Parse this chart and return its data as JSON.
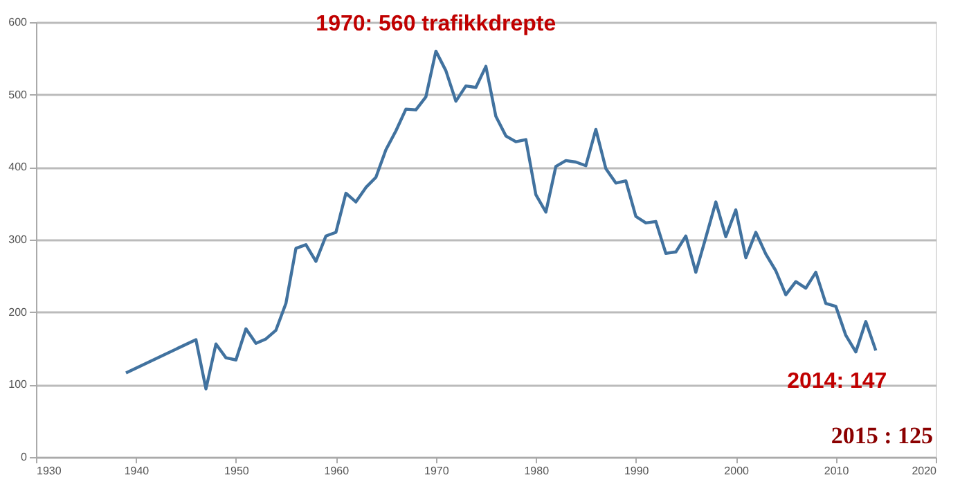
{
  "chart_data": {
    "type": "line",
    "x": [
      1939,
      1946,
      1947,
      1948,
      1949,
      1950,
      1951,
      1952,
      1953,
      1954,
      1955,
      1956,
      1957,
      1958,
      1959,
      1960,
      1961,
      1962,
      1963,
      1964,
      1965,
      1966,
      1967,
      1968,
      1969,
      1970,
      1971,
      1972,
      1973,
      1974,
      1975,
      1976,
      1977,
      1978,
      1979,
      1980,
      1981,
      1982,
      1983,
      1984,
      1985,
      1986,
      1987,
      1988,
      1989,
      1990,
      1991,
      1992,
      1993,
      1994,
      1995,
      1996,
      1997,
      1998,
      1999,
      2000,
      2001,
      2002,
      2003,
      2004,
      2005,
      2006,
      2007,
      2008,
      2009,
      2010,
      2011,
      2012,
      2013,
      2014
    ],
    "series": [
      {
        "color": "#41729f",
        "values": [
          116,
          162,
          94,
          156,
          137,
          134,
          177,
          157,
          163,
          175,
          212,
          288,
          293,
          270,
          305,
          310,
          364,
          352,
          372,
          386,
          424,
          450,
          480,
          479,
          497,
          560,
          533,
          491,
          512,
          510,
          539,
          470,
          443,
          435,
          438,
          362,
          338,
          401,
          409,
          407,
          402,
          452,
          398,
          378,
          381,
          332,
          323,
          325,
          281,
          283,
          305,
          255,
          303,
          352,
          304,
          341,
          275,
          310,
          280,
          257,
          224,
          242,
          233,
          255,
          212,
          208,
          168,
          145,
          187,
          147
        ]
      }
    ],
    "xlim": [
      1930,
      2020
    ],
    "xticks": [
      1930,
      1940,
      1950,
      1960,
      1970,
      1980,
      1990,
      2000,
      2010,
      2020
    ],
    "ylim": [
      0,
      600
    ],
    "yticks": [
      0,
      100,
      200,
      300,
      400,
      500,
      600
    ],
    "grid": "y",
    "marker": "none",
    "line_style": "solid",
    "annotations": [
      {
        "text": "1970: 560 trafikkdrepte",
        "x": 1970,
        "y": 560
      },
      {
        "text": "2014: 147",
        "x": 2014,
        "y": 147
      },
      "2015 : 125"
    ]
  }
}
